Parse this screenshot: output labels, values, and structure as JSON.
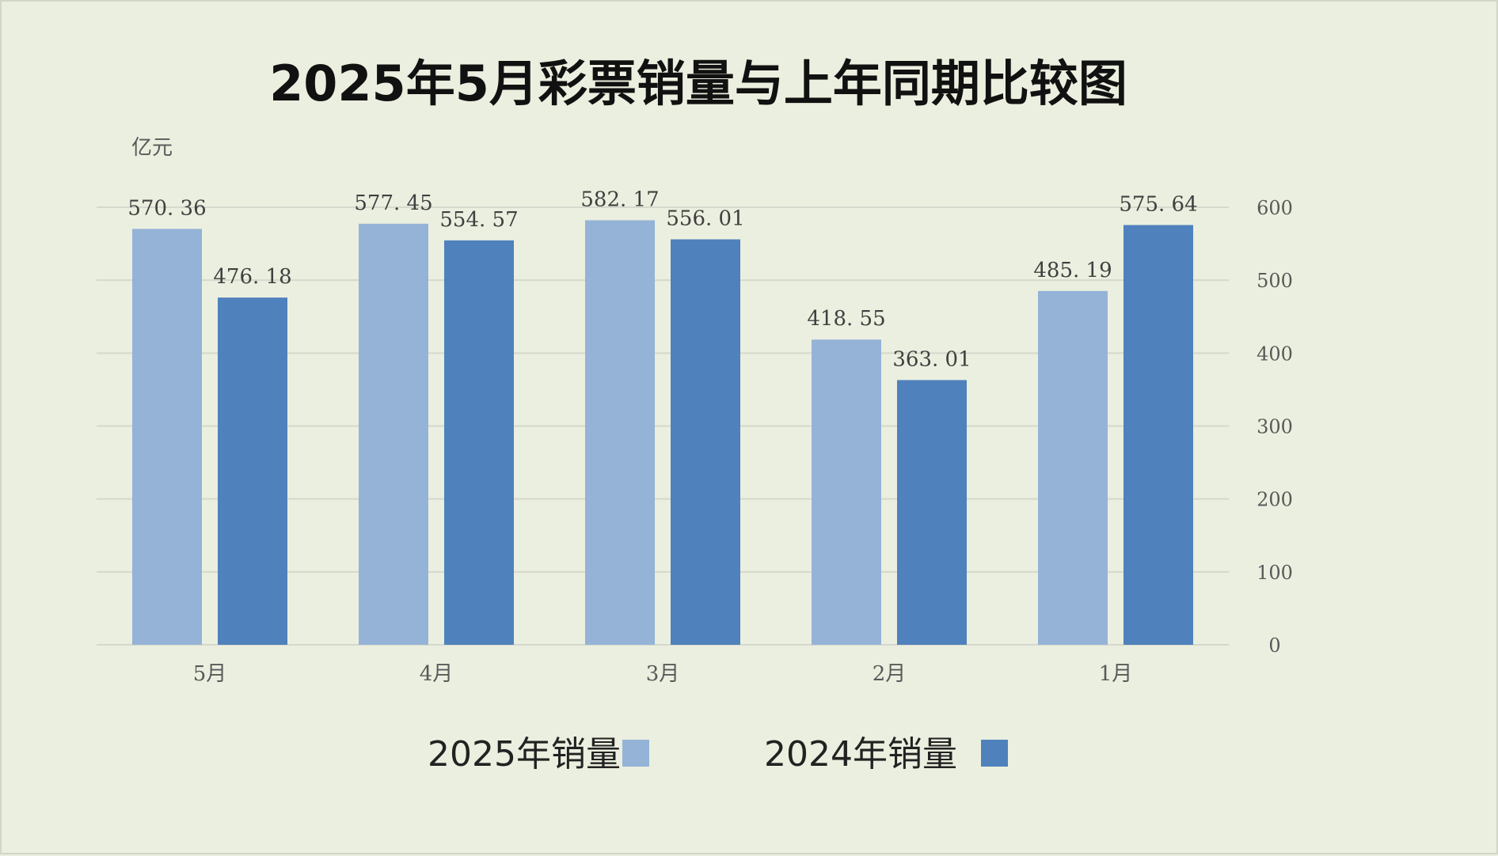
{
  "chart_data": {
    "type": "bar",
    "title": "2025年5月彩票销量与上年同期比较图",
    "unit_label": "亿元",
    "categories": [
      "1月",
      "2月",
      "3月",
      "4月",
      "5月"
    ],
    "series": [
      {
        "name": "2025年销量",
        "color": "#95b3d7",
        "values": [
          485.19,
          418.55,
          582.17,
          577.45,
          570.36
        ]
      },
      {
        "name": "2024年销量",
        "color": "#4f81bd",
        "values": [
          575.64,
          363.01,
          556.01,
          554.57,
          476.18
        ]
      }
    ],
    "data_labels": [
      [
        "485. 19",
        "418. 55",
        "582. 17",
        "577. 45",
        "570. 36"
      ],
      [
        "575. 64",
        "363. 01",
        "556. 01",
        "554. 57",
        "476. 18"
      ]
    ],
    "ylim": [
      0,
      600
    ],
    "yticks": [
      "0",
      "100",
      "200",
      "300",
      "400",
      "500",
      "600"
    ],
    "grid": true,
    "legend_position": "bottom",
    "mirrored": true
  }
}
